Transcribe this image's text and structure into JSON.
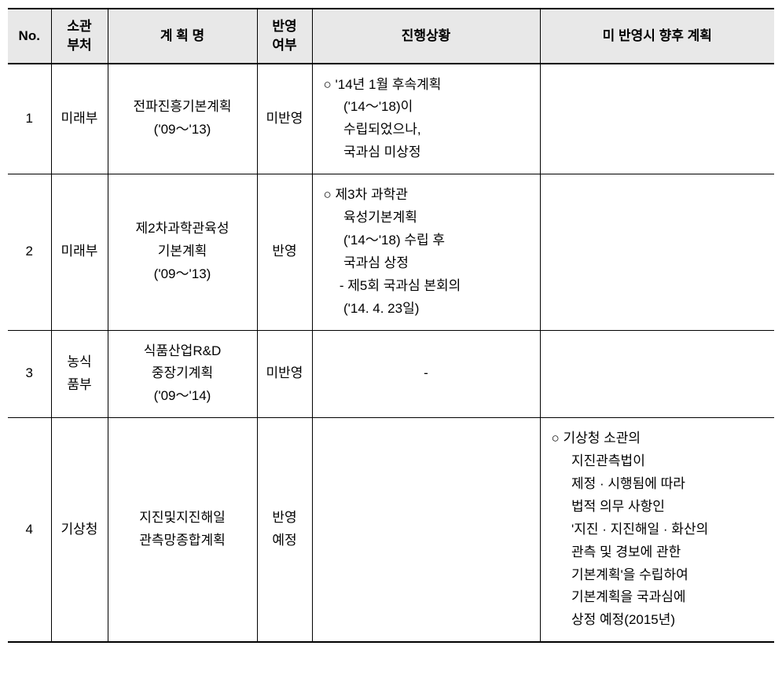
{
  "table": {
    "headers": {
      "no": "No.",
      "dept": "소관\n부처",
      "plan": "계 획 명",
      "reflect": "반영\n여부",
      "status": "진행상황",
      "future": "미 반영시 향후 계획"
    },
    "rows": [
      {
        "no": "1",
        "dept": "미래부",
        "plan": "전파진흥기본계획\n('09～'13)",
        "reflect": "미반영",
        "status_lines": [
          "○ '14년 1월 후속계획",
          "('14～'18)이",
          "수립되었으나,",
          "국과심 미상정"
        ],
        "future_lines": []
      },
      {
        "no": "2",
        "dept": "미래부",
        "plan": "제2차과학관육성\n기본계획\n('09～'13)",
        "reflect": "반영",
        "status_lines": [
          "○ 제3차 과학관",
          "육성기본계획",
          "('14～'18) 수립 후",
          "국과심 상정",
          "- 제5회 국과심 본회의",
          "('14. 4. 23일)"
        ],
        "future_lines": []
      },
      {
        "no": "3",
        "dept": "농식\n품부",
        "plan": "식품산업R&D\n중장기계획\n('09～'14)",
        "reflect": "미반영",
        "status_center": "-",
        "future_lines": []
      },
      {
        "no": "4",
        "dept": "기상청",
        "plan": "지진및지진해일\n관측망종합계획",
        "reflect": "반영\n예정",
        "status_lines": [],
        "future_lines": [
          "○ 기상청 소관의",
          "지진관측법이",
          "제정 · 시행됨에 따라",
          "법적 의무 사항인",
          "'지진 · 지진해일 · 화산의",
          "관측 및 경보에 관한",
          "기본계획'을 수립하여",
          "기본계획을 국과심에",
          "상정 예정(2015년)"
        ]
      }
    ]
  },
  "colors": {
    "header_bg": "#e8e8e8",
    "border": "#000000",
    "text": "#000000",
    "background": "#ffffff"
  },
  "typography": {
    "font_family": "Malgun Gothic",
    "font_size_pt": 12,
    "line_height": 1.7
  }
}
